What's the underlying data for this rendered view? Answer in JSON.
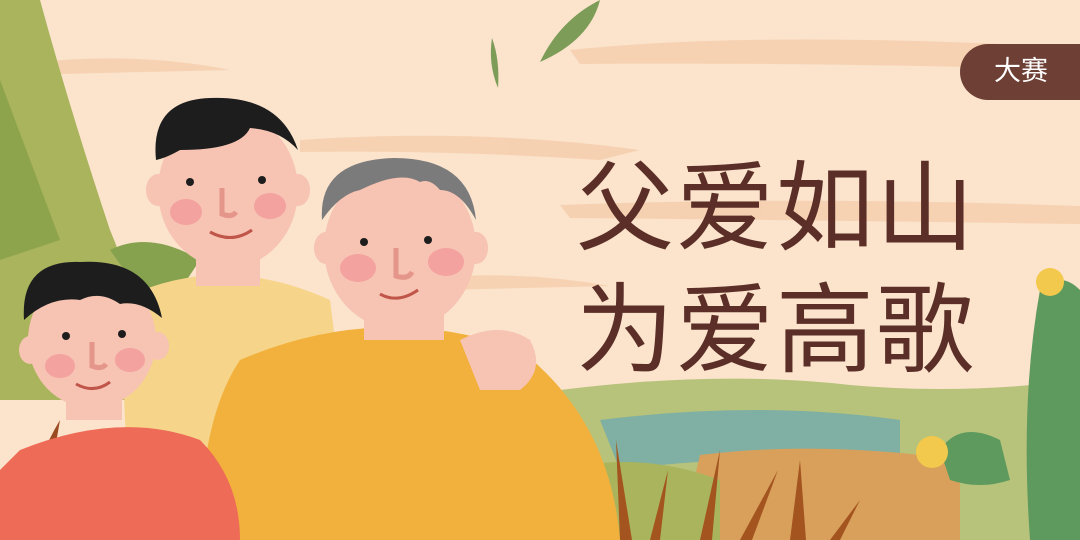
{
  "badge": {
    "label": "大赛"
  },
  "title": {
    "line1": "父爱如山",
    "line2": "为爱高歌"
  },
  "colors": {
    "background": "#fbe3cc",
    "title": "#5b2f28",
    "badge_bg": "#6e3f35",
    "badge_text": "#ffffff"
  }
}
